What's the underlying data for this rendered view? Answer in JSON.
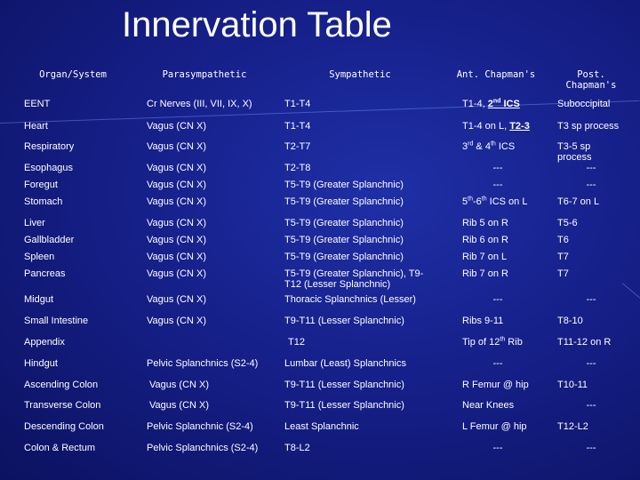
{
  "title": "Innervation Table",
  "headers": {
    "organ": "Organ/System",
    "parasympathetic": "Parasympathetic",
    "sympathetic": "Sympathetic",
    "ant_chapmans": "Ant. Chapman's",
    "post_chapmans": "Post. Chapman's"
  },
  "rows": [
    {
      "organ": "EENT",
      "para": "Cr Nerves  (III, VII, IX, X)",
      "symp": "T1-T4",
      "ant": "",
      "post": "Suboccipital"
    },
    {
      "organ": "Heart",
      "para": "Vagus (CN X)",
      "symp": "T1-T4",
      "ant": "",
      "post": "T3 sp process"
    },
    {
      "organ": "Respiratory",
      "para": "Vagus (CN X)",
      "symp": "T2-T7",
      "ant": "",
      "post": "T3-5 sp process"
    },
    {
      "organ": "Esophagus",
      "para": "Vagus (CN X)",
      "symp": "T2-T8",
      "ant": "---",
      "post": "---"
    },
    {
      "organ": "Foregut",
      "para": "Vagus (CN X)",
      "symp": "T5-T9 (Greater Splanchnic)",
      "ant": "---",
      "post": "---"
    },
    {
      "organ": "Stomach",
      "para": "Vagus (CN X)",
      "symp": "T5-T9 (Greater Splanchnic)",
      "ant": "",
      "post": "T6-7 on L"
    },
    {
      "organ": "Liver",
      "para": "Vagus (CN X)",
      "symp": "T5-T9 (Greater Splanchnic)",
      "ant": "Rib 5 on R",
      "post": "T5-6"
    },
    {
      "organ": "Gallbladder",
      "para": "Vagus (CN X)",
      "symp": "T5-T9 (Greater Splanchnic)",
      "ant": "Rib 6 on R",
      "post": "T6"
    },
    {
      "organ": "Spleen",
      "para": "Vagus (CN X)",
      "symp": "T5-T9 (Greater Splanchnic)",
      "ant": "Rib 7 on L",
      "post": "T7"
    },
    {
      "organ": "Pancreas",
      "para": "Vagus (CN X)",
      "symp": "T5-T9 (Greater Splanchnic), T9-T12 (Lesser Splanchnic)",
      "ant": "Rib 7 on R",
      "post": "T7"
    },
    {
      "organ": "Midgut",
      "para": "Vagus (CN X)",
      "symp": "Thoracic Splanchnics (Lesser)",
      "ant": "---",
      "post": "---"
    },
    {
      "organ": "Small Intestine",
      "para": "Vagus (CN X)",
      "symp": "T9-T11  (Lesser Splanchnic)",
      "ant": "Ribs 9-11",
      "post": "T8-10"
    },
    {
      "organ": "Appendix",
      "para": "",
      "symp": "T12",
      "ant": "",
      "post": "T11-12 on R"
    },
    {
      "organ": "Hindgut",
      "para": "Pelvic Splanchnics  (S2-4)",
      "symp": "Lumbar (Least) Splanchnics",
      "ant": "---",
      "post": "---"
    },
    {
      "organ": "Ascending Colon",
      "para": "Vagus (CN X)",
      "symp": "T9-T11 (Lesser Splanchnic)",
      "ant": "R Femur @ hip",
      "post": "T10-11"
    },
    {
      "organ": "Transverse Colon",
      "para": "Vagus (CN X)",
      "symp": "T9-T11 (Lesser Splanchnic)",
      "ant": "Near Knees",
      "post": "---"
    },
    {
      "organ": "Descending Colon",
      "para": "Pelvic Splanchnic (S2-4)",
      "symp": "Least Splanchnic",
      "ant": "L Femur @ hip",
      "post": "T12-L2"
    },
    {
      "organ": "Colon & Rectum",
      "para": "Pelvic Splanchnics (S2-4)",
      "symp": "T8-L2",
      "ant": "---",
      "post": "---"
    }
  ],
  "ant_special": {
    "eent": {
      "pre": "T1-4, ",
      "num": "2",
      "sup": "nd",
      "post": " ICS"
    },
    "heart": {
      "pre": "T1-4 on L, ",
      "link": "T2-3"
    },
    "resp": {
      "num1": "3",
      "sup1": "rd",
      "mid": " & ",
      "num2": "4",
      "sup2": "th",
      "post": " ICS"
    },
    "stomach": {
      "num1": "5",
      "sup1": "th",
      "mid": "-",
      "num2": "6",
      "sup2": "th",
      "post": " ICS on L"
    },
    "appendix": {
      "pre": "Tip of 12",
      "sup": "th",
      "post": " Rib"
    }
  },
  "colors": {
    "background": "#16208a",
    "text": "#ffffff"
  }
}
